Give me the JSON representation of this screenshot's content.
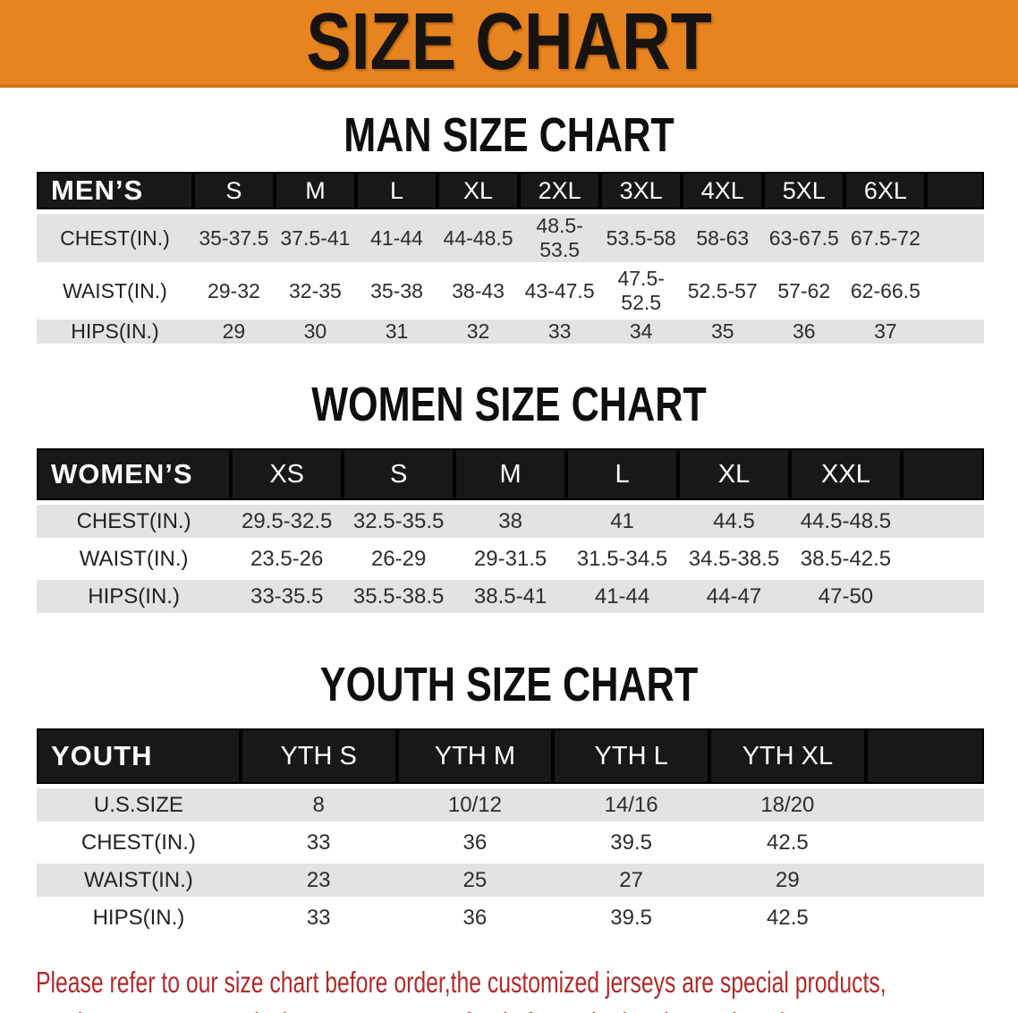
{
  "banner": {
    "title": "SIZE CHART"
  },
  "sections": {
    "men": {
      "heading": "MAN SIZE CHART",
      "table": {
        "label": "MEN’S",
        "columns": [
          "S",
          "M",
          "L",
          "XL",
          "2XL",
          "3XL",
          "4XL",
          "5XL",
          "6XL"
        ],
        "rows": [
          {
            "label": "CHEST(IN.)",
            "values": [
              "35-37.5",
              "37.5-41",
              "41-44",
              "44-48.5",
              "48.5-53.5",
              "53.5-58",
              "58-63",
              "63-67.5",
              "67.5-72"
            ]
          },
          {
            "label": "WAIST(IN.)",
            "values": [
              "29-32",
              "32-35",
              "35-38",
              "38-43",
              "43-47.5",
              "47.5-52.5",
              "52.5-57",
              "57-62",
              "62-66.5"
            ]
          },
          {
            "label": "HIPS(IN.)",
            "values": [
              "29",
              "30",
              "31",
              "32",
              "33",
              "34",
              "35",
              "36",
              "37"
            ]
          }
        ]
      }
    },
    "women": {
      "heading": "WOMEN SIZE CHART",
      "table": {
        "label": "WOMEN’S",
        "columns": [
          "XS",
          "S",
          "M",
          "L",
          "XL",
          "XXL"
        ],
        "rows": [
          {
            "label": "CHEST(IN.)",
            "values": [
              "29.5-32.5",
              "32.5-35.5",
              "38",
              "41",
              "44.5",
              "44.5-48.5"
            ]
          },
          {
            "label": "WAIST(IN.)",
            "values": [
              "23.5-26",
              "26-29",
              "29-31.5",
              "31.5-34.5",
              "34.5-38.5",
              "38.5-42.5"
            ]
          },
          {
            "label": "HIPS(IN.)",
            "values": [
              "33-35.5",
              "35.5-38.5",
              "38.5-41",
              "41-44",
              "44-47",
              "47-50"
            ]
          }
        ]
      }
    },
    "youth": {
      "heading": "YOUTH SIZE CHART",
      "table": {
        "label": "YOUTH",
        "columns": [
          "YTH S",
          "YTH M",
          "YTH L",
          "YTH XL"
        ],
        "rows": [
          {
            "label": "U.S.SIZE",
            "values": [
              "8",
              "10/12",
              "14/16",
              "18/20"
            ]
          },
          {
            "label": "CHEST(IN.)",
            "values": [
              "33",
              "36",
              "39.5",
              "42.5"
            ]
          },
          {
            "label": "WAIST(IN.)",
            "values": [
              "23",
              "25",
              "27",
              "29"
            ]
          },
          {
            "label": "HIPS(IN.)",
            "values": [
              "33",
              "36",
              "39.5",
              "42.5"
            ]
          }
        ]
      }
    }
  },
  "disclaimer": {
    "line1": "Please refer to our size chart before order,the customized jerseys are special products,",
    "line2": "we don't accept cancel, change, teturn or refund after order has been placed!"
  },
  "colors": {
    "banner_orange": "#e8841f",
    "table_header_black": "#181818",
    "row_stripe_gray": "#e3e3e5",
    "disclaimer_red": "#b12b2b"
  }
}
